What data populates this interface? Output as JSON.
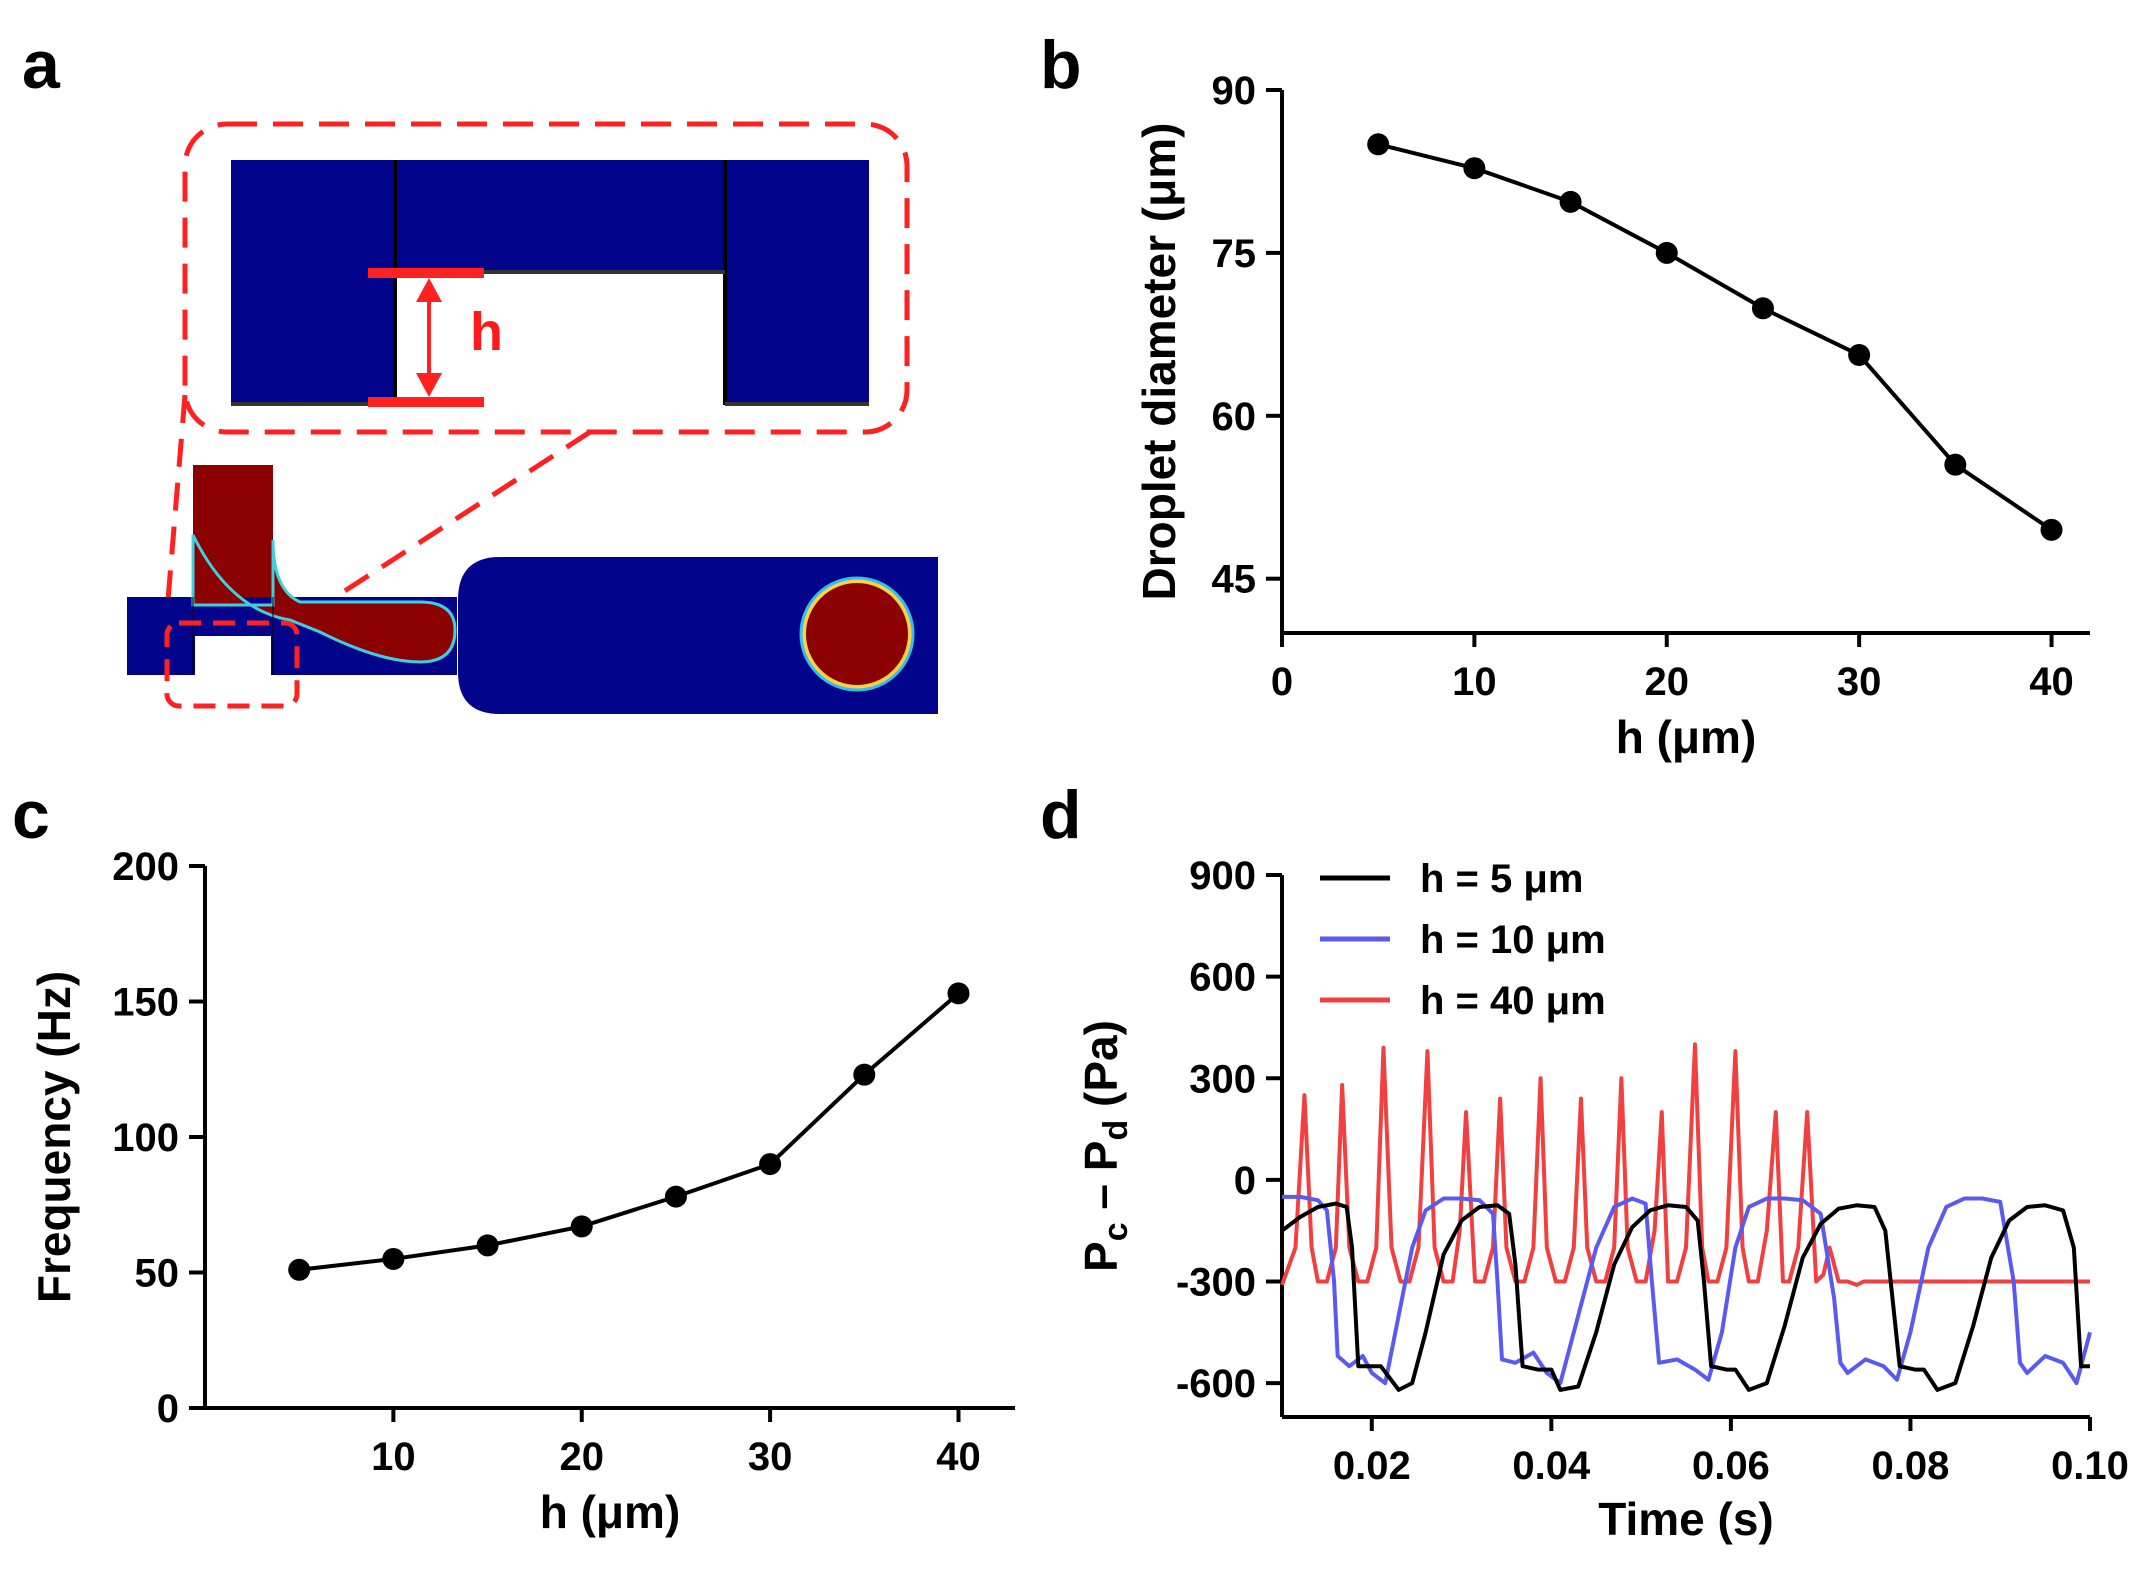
{
  "figure": {
    "panel_labels": {
      "a": "a",
      "b": "b",
      "c": "c",
      "d": "d"
    },
    "colors": {
      "channel_blue": "#02048c",
      "droplet_red": "#8b0000",
      "annotation_red": "#ff2020",
      "series_black": "#000000",
      "series_blue": "#5a5af0",
      "series_red": "#f04040"
    },
    "panel_a": {
      "h_label": "h",
      "description_of_parts": [
        "zoom-inset",
        "flow-focusing-channel",
        "droplet"
      ]
    }
  },
  "chart_data": [
    {
      "id": "b",
      "type": "line",
      "x": [
        5,
        10,
        15,
        20,
        25,
        30,
        35,
        40
      ],
      "y": [
        85,
        82.8,
        79.7,
        75,
        69.9,
        65.6,
        55.5,
        49.5
      ],
      "xlabel": "h (μm)",
      "ylabel": "Droplet diameter (μm)",
      "xlim": [
        0,
        42
      ],
      "ylim": [
        40,
        90
      ],
      "xticks": [
        0,
        10,
        20,
        30,
        40
      ],
      "yticks": [
        45,
        60,
        75,
        90
      ],
      "xtick_labels": [
        "0",
        "10",
        "20",
        "30",
        "40"
      ],
      "ytick_labels": [
        "45",
        "60",
        "75",
        "90"
      ],
      "markers": true,
      "grid": false
    },
    {
      "id": "c",
      "type": "line",
      "x": [
        5,
        10,
        15,
        20,
        25,
        30,
        35,
        40
      ],
      "y": [
        51,
        55,
        60,
        67,
        78,
        90,
        123,
        153
      ],
      "xlabel": "h (μm)",
      "ylabel": "Frequency (Hz)",
      "xlim": [
        0,
        43
      ],
      "ylim": [
        0,
        200
      ],
      "xticks": [
        10,
        20,
        30,
        40
      ],
      "yticks": [
        0,
        50,
        100,
        150,
        200
      ],
      "xtick_labels": [
        "10",
        "20",
        "30",
        "40"
      ],
      "ytick_labels": [
        "0",
        "50",
        "100",
        "150",
        "200"
      ],
      "markers": true,
      "grid": false
    },
    {
      "id": "d",
      "type": "line",
      "xlabel": "Time (s)",
      "ylabel_parts": {
        "p1": "P",
        "s1": "c",
        "mid": " – P",
        "s2": "d",
        "unit": " (Pa)"
      },
      "xlim": [
        0.01,
        0.1
      ],
      "ylim": [
        -700,
        900
      ],
      "xticks": [
        0.02,
        0.04,
        0.06,
        0.08,
        0.1
      ],
      "yticks": [
        -600,
        -300,
        0,
        300,
        600,
        900
      ],
      "xtick_labels": [
        "0.02",
        "0.04",
        "0.06",
        "0.08",
        "0.10"
      ],
      "ytick_labels": [
        "-600",
        "-300",
        "0",
        "300",
        "600",
        "900"
      ],
      "legend_position": "top-left",
      "grid": false,
      "series": [
        {
          "name": "h = 5 μm",
          "color": "#000000",
          "x": [
            0.01,
            0.012,
            0.014,
            0.016,
            0.0172,
            0.0178,
            0.0185,
            0.02,
            0.021,
            0.023,
            0.0245,
            0.026,
            0.028,
            0.03,
            0.032,
            0.034,
            0.0353,
            0.036,
            0.0368,
            0.0385,
            0.04,
            0.041,
            0.043,
            0.045,
            0.047,
            0.049,
            0.051,
            0.053,
            0.055,
            0.0563,
            0.057,
            0.0578,
            0.0595,
            0.0605,
            0.062,
            0.064,
            0.066,
            0.068,
            0.07,
            0.072,
            0.074,
            0.076,
            0.0772,
            0.078,
            0.0788,
            0.0805,
            0.0815,
            0.083,
            0.085,
            0.087,
            0.089,
            0.091,
            0.093,
            0.095,
            0.097,
            0.0982,
            0.099,
            0.1
          ],
          "y": [
            -150,
            -110,
            -80,
            -70,
            -80,
            -200,
            -550,
            -550,
            -550,
            -620,
            -600,
            -450,
            -220,
            -120,
            -80,
            -75,
            -100,
            -250,
            -550,
            -560,
            -560,
            -620,
            -610,
            -450,
            -250,
            -140,
            -90,
            -75,
            -80,
            -120,
            -300,
            -550,
            -560,
            -560,
            -620,
            -600,
            -430,
            -230,
            -130,
            -85,
            -75,
            -80,
            -150,
            -350,
            -550,
            -560,
            -560,
            -620,
            -600,
            -430,
            -230,
            -120,
            -80,
            -75,
            -90,
            -200,
            -550,
            -550
          ]
        },
        {
          "name": "h = 10 μm",
          "color": "#5a5af0",
          "x": [
            0.01,
            0.012,
            0.014,
            0.015,
            0.0158,
            0.0162,
            0.0175,
            0.019,
            0.02,
            0.0215,
            0.023,
            0.0245,
            0.026,
            0.028,
            0.03,
            0.032,
            0.0335,
            0.034,
            0.0345,
            0.036,
            0.038,
            0.0395,
            0.041,
            0.043,
            0.045,
            0.047,
            0.049,
            0.0505,
            0.0512,
            0.052,
            0.054,
            0.056,
            0.0575,
            0.059,
            0.0605,
            0.062,
            0.064,
            0.066,
            0.068,
            0.07,
            0.0715,
            0.0722,
            0.073,
            0.075,
            0.077,
            0.0785,
            0.08,
            0.082,
            0.084,
            0.086,
            0.088,
            0.09,
            0.0915,
            0.0922,
            0.093,
            0.095,
            0.097,
            0.0985,
            0.1
          ],
          "y": [
            -50,
            -50,
            -60,
            -90,
            -300,
            -520,
            -550,
            -520,
            -570,
            -600,
            -400,
            -200,
            -90,
            -55,
            -55,
            -60,
            -100,
            -300,
            -530,
            -540,
            -510,
            -570,
            -600,
            -400,
            -200,
            -80,
            -55,
            -70,
            -300,
            -540,
            -530,
            -560,
            -590,
            -450,
            -200,
            -80,
            -55,
            -55,
            -60,
            -100,
            -350,
            -540,
            -570,
            -530,
            -550,
            -590,
            -450,
            -200,
            -80,
            -55,
            -55,
            -65,
            -300,
            -540,
            -570,
            -520,
            -540,
            -600,
            -450
          ]
        },
        {
          "name": "h = 40 μm",
          "color": "#f04040",
          "x": [
            0.01,
            0.0115,
            0.0125,
            0.0133,
            0.014,
            0.015,
            0.016,
            0.0167,
            0.0175,
            0.0185,
            0.0195,
            0.0205,
            0.0213,
            0.0222,
            0.0232,
            0.0242,
            0.0252,
            0.0262,
            0.027,
            0.028,
            0.029,
            0.0298,
            0.0305,
            0.0315,
            0.0325,
            0.0335,
            0.0343,
            0.035,
            0.036,
            0.037,
            0.038,
            0.0388,
            0.0395,
            0.0405,
            0.0415,
            0.0425,
            0.0433,
            0.044,
            0.045,
            0.046,
            0.047,
            0.0478,
            0.0485,
            0.0495,
            0.0505,
            0.0515,
            0.0523,
            0.053,
            0.054,
            0.055,
            0.056,
            0.0568,
            0.0575,
            0.0585,
            0.0595,
            0.0605,
            0.0613,
            0.062,
            0.063,
            0.064,
            0.065,
            0.0658,
            0.0665,
            0.0675,
            0.0685,
            0.0695,
            0.0703,
            0.071,
            0.072,
            0.073,
            0.074,
            0.0748,
            0.0755,
            0.0765,
            0.0775,
            0.0785,
            0.0793,
            0.08,
            0.081,
            0.082,
            0.083,
            0.0838,
            0.0845,
            0.0855,
            0.0865,
            0.0875,
            0.0883,
            0.089,
            0.09,
            0.091,
            0.092,
            0.0928,
            0.0935,
            0.0945,
            0.0955,
            0.0965,
            0.0973,
            0.098,
            0.099,
            0.1
          ],
          "y": [
            -310,
            -200,
            250,
            -200,
            -300,
            -300,
            -200,
            280,
            -200,
            -300,
            -300,
            -200,
            390,
            -200,
            -300,
            -300,
            -200,
            380,
            -200,
            -300,
            -300,
            -150,
            200,
            -300,
            -300,
            -200,
            240,
            -200,
            -300,
            -300,
            -200,
            300,
            -200,
            -300,
            -300,
            -200,
            240,
            -200,
            -300,
            -300,
            -200,
            300,
            -200,
            -300,
            -300,
            -150,
            200,
            -300,
            -300,
            -200,
            400,
            -200,
            -300,
            -300,
            -200,
            380,
            -200,
            -300,
            -300,
            -150,
            200,
            -300,
            -300,
            -200,
            200,
            -300,
            -280,
            -200,
            -300,
            -300,
            -310,
            -300,
            -300,
            -300,
            -300,
            -300,
            -300,
            -300,
            -300,
            -300,
            -300,
            -300,
            -300,
            -300,
            -300,
            -300,
            -300,
            -300,
            -300,
            -300,
            -300,
            -300,
            -300,
            -300,
            -300,
            -300,
            -300,
            -300,
            -300,
            -300
          ]
        }
      ]
    }
  ]
}
